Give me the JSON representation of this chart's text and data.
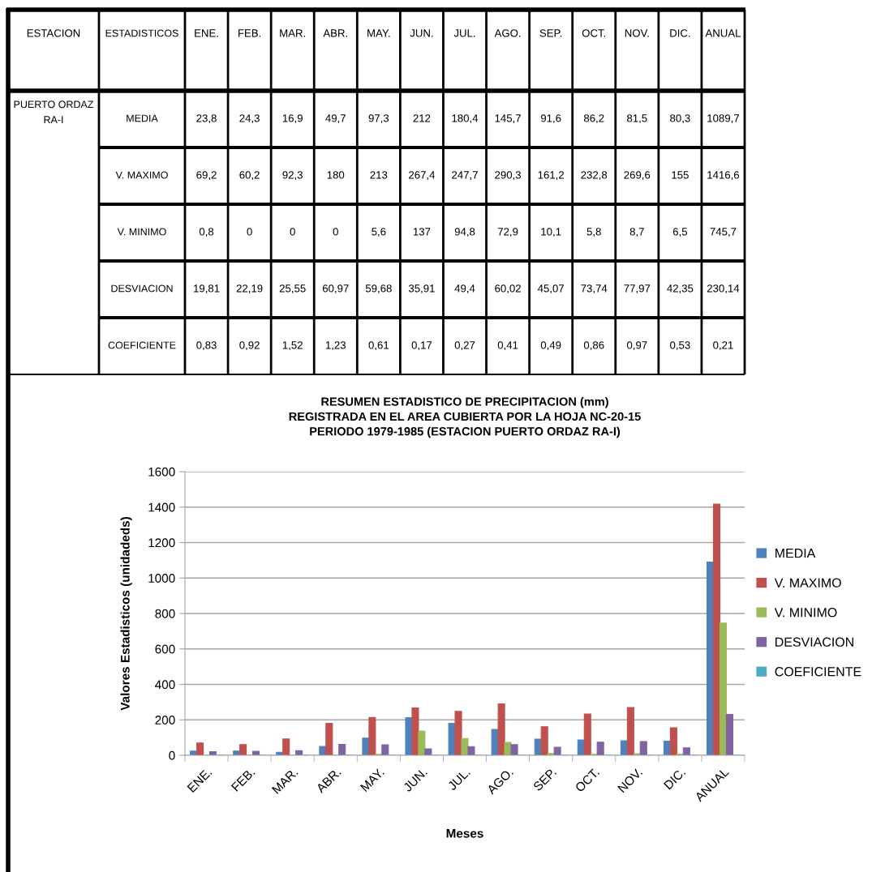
{
  "chart_data": {
    "type": "bar",
    "title": "RESUMEN ESTADISTICO DE PRECIPITACION (mm)\nREGISTRADA EN EL AREA CUBIERTA POR LA HOJA NC-20-15\nPERIODO 1979-1985 (ESTACION PUERTO ORDAZ RA-I)",
    "xlabel": "Meses",
    "ylabel": "Valores Estadisticos (unidadeds)",
    "annotations": [
      "ESTACION",
      "ESTADISTICOS",
      "PUERTO ORDAZ RA-I"
    ],
    "categories": [
      "ENE.",
      "FEB.",
      "MAR.",
      "ABR.",
      "MAY.",
      "JUN.",
      "JUL.",
      "AGO.",
      "SEP.",
      "OCT.",
      "NOV.",
      "DIC.",
      "ANUAL"
    ],
    "series": [
      {
        "name": "MEDIA",
        "color": "#4f81bd",
        "values": [
          23.8,
          24.3,
          16.9,
          49.7,
          97.3,
          212,
          180.4,
          145.7,
          91.6,
          86.2,
          81.5,
          80.3,
          1089.7
        ],
        "value_labels": [
          "23,8",
          "24,3",
          "16,9",
          "49,7",
          "97,3",
          "212",
          "180,4",
          "145,7",
          "91,6",
          "86,2",
          "81,5",
          "80,3",
          "1089,7"
        ]
      },
      {
        "name": "V. MAXIMO",
        "color": "#c0504d",
        "values": [
          69.2,
          60.2,
          92.3,
          180,
          213,
          267.4,
          247.7,
          290.3,
          161.2,
          232.8,
          269.6,
          155,
          1416.6
        ],
        "value_labels": [
          "69,2",
          "60,2",
          "92,3",
          "180",
          "213",
          "267,4",
          "247,7",
          "290,3",
          "161,2",
          "232,8",
          "269,6",
          "155",
          "1416,6"
        ]
      },
      {
        "name": "V. MINIMO",
        "color": "#9bbb59",
        "values": [
          0.8,
          0,
          0,
          0,
          5.6,
          137,
          94.8,
          72.9,
          10.1,
          5.8,
          8.7,
          6.5,
          745.7
        ],
        "value_labels": [
          "0,8",
          "0",
          "0",
          "0",
          "5,6",
          "137",
          "94,8",
          "72,9",
          "10,1",
          "5,8",
          "8,7",
          "6,5",
          "745,7"
        ]
      },
      {
        "name": "DESVIACION",
        "color": "#8064a2",
        "values": [
          19.81,
          22.19,
          25.55,
          60.97,
          59.68,
          35.91,
          49.4,
          60.02,
          45.07,
          73.74,
          77.97,
          42.35,
          230.14
        ],
        "value_labels": [
          "19,81",
          "22,19",
          "25,55",
          "60,97",
          "59,68",
          "35,91",
          "49,4",
          "60,02",
          "45,07",
          "73,74",
          "77,97",
          "42,35",
          "230,14"
        ]
      },
      {
        "name": "COEFICIENTE",
        "color": "#4bacc6",
        "values": [
          0.83,
          0.92,
          1.52,
          1.23,
          0.61,
          0.17,
          0.27,
          0.41,
          0.49,
          0.86,
          0.97,
          0.53,
          0.21
        ],
        "value_labels": [
          "0,83",
          "0,92",
          "1,52",
          "1,23",
          "0,61",
          "0,17",
          "0,27",
          "0,41",
          "0,49",
          "0,86",
          "0,97",
          "0,53",
          "0,21"
        ]
      }
    ],
    "ylim": [
      0,
      1600
    ],
    "yticks": [
      0,
      200,
      400,
      600,
      800,
      1000,
      1200,
      1400,
      1600
    ],
    "grid": "y",
    "legend": "right"
  }
}
